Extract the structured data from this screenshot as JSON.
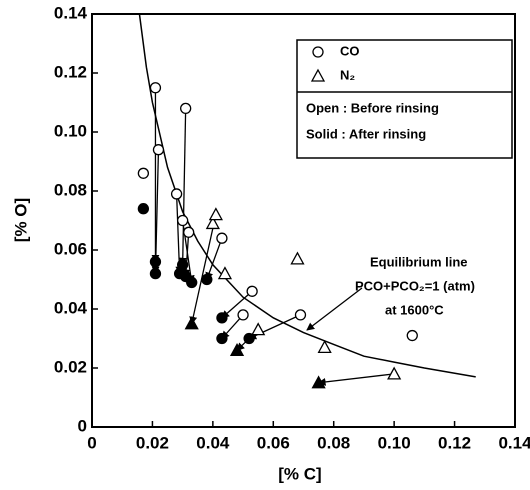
{
  "chart_data": {
    "type": "scatter",
    "xlabel": "[% C]",
    "ylabel": "[% O]",
    "xlim": [
      0,
      0.14
    ],
    "ylim": [
      0,
      0.14
    ],
    "xticks": [
      0,
      0.02,
      0.04,
      0.06,
      0.08,
      {
        "value": 0.1,
        "label": "0.10"
      },
      0.12,
      0.14
    ],
    "yticks": [
      0,
      0.02,
      0.04,
      0.06,
      0.08,
      {
        "value": 0.1,
        "label": "0.10"
      },
      0.12,
      0.14
    ],
    "color": "#000000",
    "legend_notes": [
      "Open : Before rinsing",
      "Solid : After rinsing"
    ],
    "annotation": [
      "Equilibrium line",
      "PCO+PCO₂=1 (atm)",
      "at 1600°C"
    ],
    "series": [
      {
        "name": "CO",
        "marker": "circle",
        "x": [
          0.017,
          0.021,
          0.022,
          0.028,
          0.03,
          0.031,
          0.032,
          0.043,
          0.05,
          0.053,
          0.069,
          0.106
        ],
        "y": [
          0.086,
          0.115,
          0.094,
          0.079,
          0.07,
          0.108,
          0.066,
          0.064,
          0.038,
          0.046,
          0.038,
          0.031
        ],
        "x_after": [
          0.017,
          0.021,
          0.021,
          0.029,
          0.03,
          0.031,
          0.033,
          0.038,
          0.043,
          0.043,
          0.052
        ],
        "y_after": [
          0.074,
          0.056,
          0.052,
          0.052,
          0.055,
          0.051,
          0.049,
          0.05,
          0.037,
          0.03,
          0.03
        ]
      },
      {
        "name": "N₂",
        "marker": "triangle",
        "x": [
          0.04,
          0.041,
          0.044,
          0.055,
          0.068,
          0.077,
          0.1
        ],
        "y": [
          0.069,
          0.072,
          0.052,
          0.033,
          0.057,
          0.027,
          0.018
        ],
        "x_after": [
          0.033,
          0.048,
          0.075
        ],
        "y_after": [
          0.035,
          0.026,
          0.015
        ]
      }
    ],
    "arrows": [
      [
        0.021,
        0.115,
        0.021,
        0.056
      ],
      [
        0.022,
        0.094,
        0.021,
        0.052
      ],
      [
        0.031,
        0.108,
        0.03,
        0.055
      ],
      [
        0.028,
        0.079,
        0.029,
        0.052
      ],
      [
        0.032,
        0.066,
        0.031,
        0.051
      ],
      [
        0.03,
        0.07,
        0.033,
        0.049
      ],
      [
        0.043,
        0.064,
        0.038,
        0.05
      ],
      [
        0.041,
        0.072,
        0.033,
        0.035
      ],
      [
        0.053,
        0.046,
        0.043,
        0.037
      ],
      [
        0.05,
        0.038,
        0.043,
        0.03
      ],
      [
        0.055,
        0.033,
        0.048,
        0.026
      ],
      [
        0.069,
        0.038,
        0.052,
        0.03
      ],
      [
        0.1,
        0.018,
        0.075,
        0.015
      ]
    ],
    "equilibrium_line": {
      "x": [
        0.0157,
        0.018,
        0.02,
        0.025,
        0.03,
        0.035,
        0.04,
        0.05,
        0.06,
        0.07,
        0.08,
        0.09,
        0.1,
        0.11,
        0.127
      ],
      "y": [
        0.14,
        0.122,
        0.11,
        0.088,
        0.073,
        0.063,
        0.055,
        0.044,
        0.037,
        0.032,
        0.028,
        0.024,
        0.022,
        0.02,
        0.017
      ]
    }
  }
}
